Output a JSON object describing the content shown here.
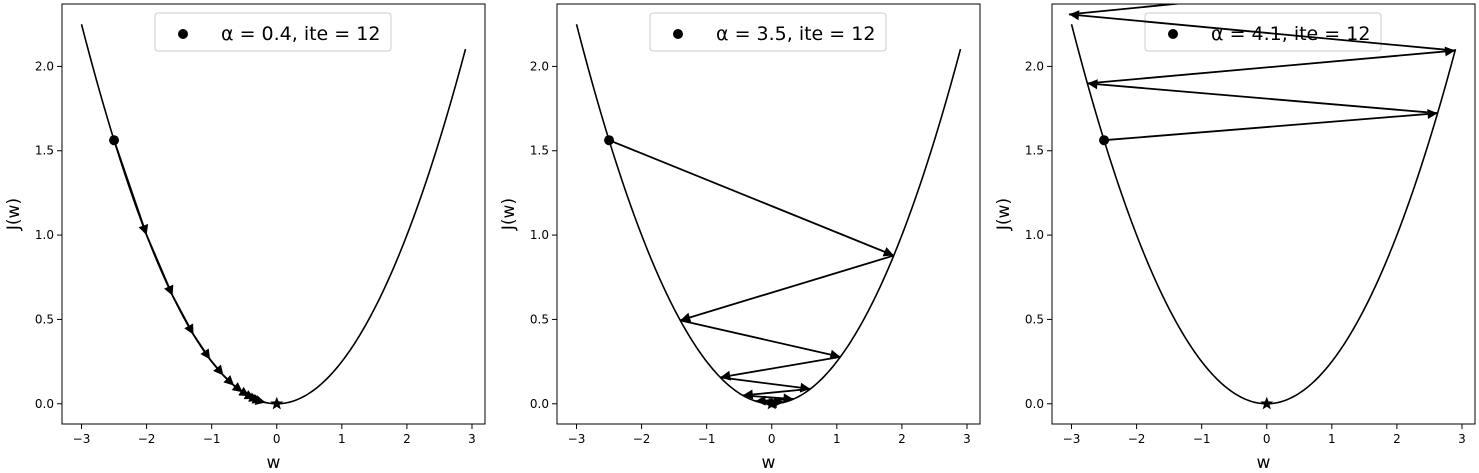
{
  "chart_data": [
    {
      "type": "line",
      "xlabel": "w",
      "ylabel": "J(w)",
      "xlim": [
        -3.3,
        3.2
      ],
      "ylim": [
        -0.12,
        2.37
      ],
      "xticks": [
        -3,
        -2,
        -1,
        0,
        1,
        2,
        3
      ],
      "yticks": [
        0.0,
        0.5,
        1.0,
        1.5,
        2.0
      ],
      "curve": {
        "x_min": -3.0,
        "x_max": 2.9
      },
      "legend": {
        "label": "α = 0.4, ite = 12",
        "placement": "upper-center"
      },
      "path_x": [
        -2.5,
        -2.0,
        -1.6,
        -1.28,
        -1.024,
        -0.819,
        -0.655,
        -0.524,
        -0.419,
        -0.336,
        -0.268,
        -0.215,
        -0.172,
        0.0
      ],
      "path_y": [
        1.5625,
        1.0,
        0.64,
        0.4096,
        0.2621,
        0.1678,
        0.1074,
        0.0687,
        0.044,
        0.0281,
        0.018,
        0.0115,
        0.0074,
        0.0
      ]
    },
    {
      "type": "line",
      "xlabel": "w",
      "ylabel": "J(w)",
      "xlim": [
        -3.3,
        3.2
      ],
      "ylim": [
        -0.12,
        2.37
      ],
      "xticks": [
        -3,
        -2,
        -1,
        0,
        1,
        2,
        3
      ],
      "yticks": [
        0.0,
        0.5,
        1.0,
        1.5,
        2.0
      ],
      "curve": {
        "x_min": -3.0,
        "x_max": 2.9
      },
      "legend": {
        "label": "α = 3.5, ite = 12",
        "placement": "upper-center"
      },
      "path_x": [
        -2.5,
        1.875,
        -1.406,
        1.055,
        -0.791,
        0.593,
        -0.445,
        0.334,
        -0.25,
        0.188,
        -0.141,
        0.106,
        -0.079,
        0.0
      ],
      "path_y": [
        1.5625,
        0.8789,
        0.4944,
        0.2781,
        0.1564,
        0.088,
        0.0495,
        0.0278,
        0.0157,
        0.0088,
        0.005,
        0.0028,
        0.0016,
        0.0
      ]
    },
    {
      "type": "line",
      "xlabel": "w",
      "ylabel": "J(w)",
      "xlim": [
        -3.3,
        3.2
      ],
      "ylim": [
        -0.12,
        2.37
      ],
      "xticks": [
        -3,
        -2,
        -1,
        0,
        1,
        2,
        3
      ],
      "yticks": [
        0.0,
        0.5,
        1.0,
        1.5,
        2.0
      ],
      "curve": {
        "x_min": -3.0,
        "x_max": 2.9
      },
      "legend": {
        "label": "α = 4.1, ite = 12",
        "placement": "upper-center"
      },
      "path_x": [
        -2.5,
        2.625,
        -2.756,
        2.894,
        -3.039,
        3.191
      ],
      "path_y": [
        1.5625,
        1.7227,
        1.8993,
        2.0939,
        2.3085,
        2.5452
      ],
      "star": [
        0.0,
        0.0
      ]
    }
  ]
}
